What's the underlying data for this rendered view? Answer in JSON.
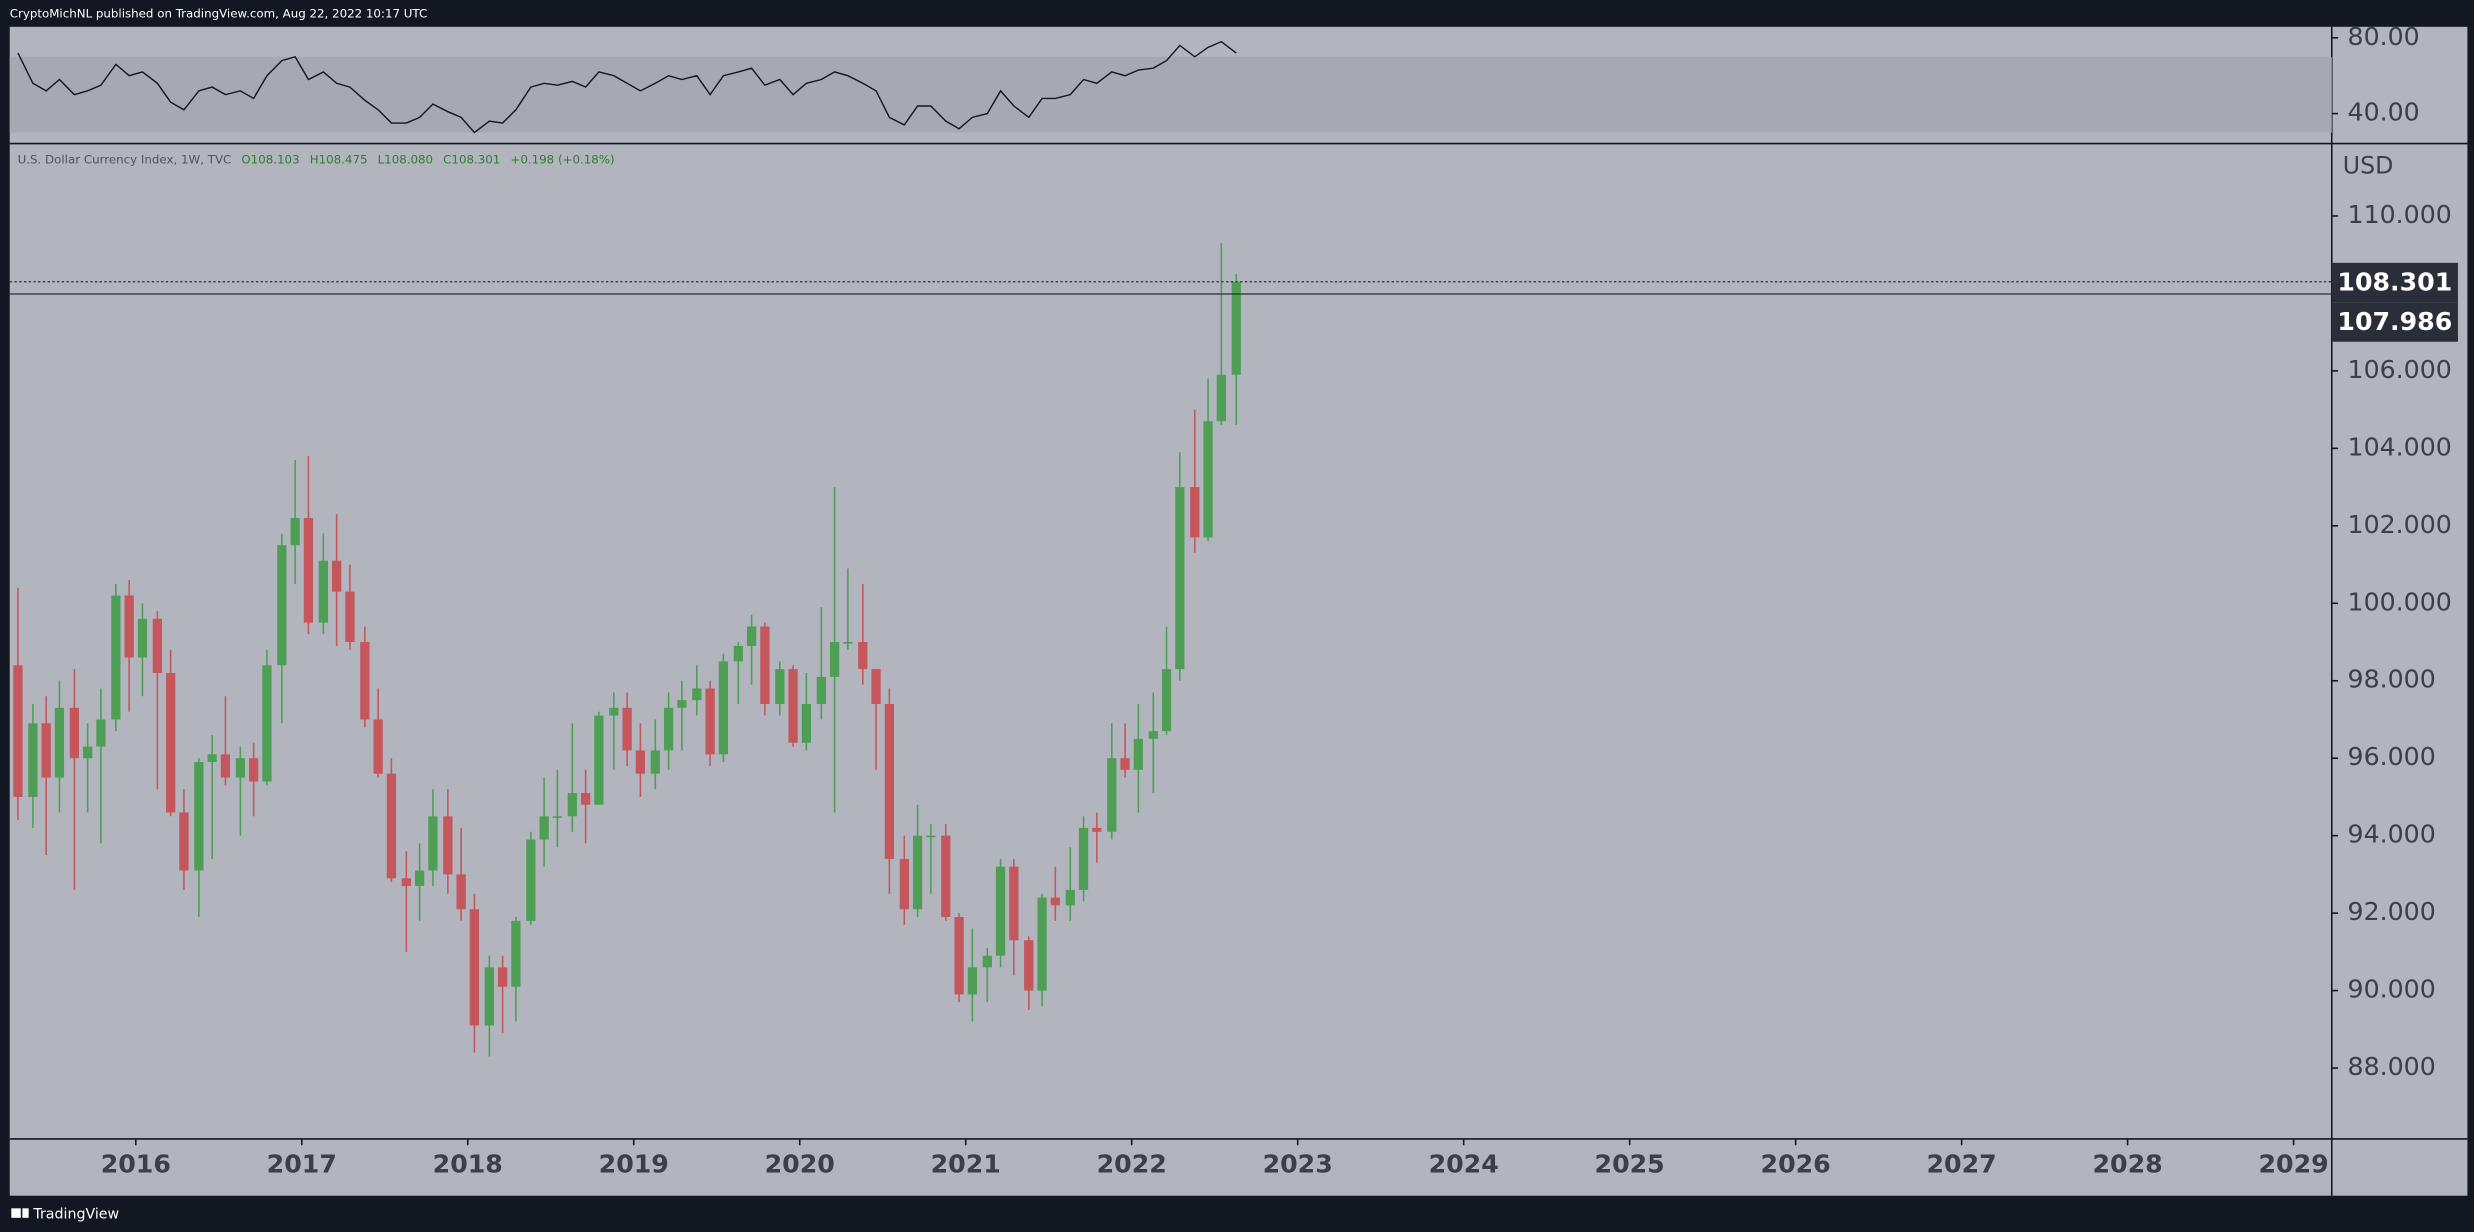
{
  "header": {
    "publisher": "CryptoMichNL published on TradingView.com, Aug 22, 2022 10:17 UTC",
    "footer": "TradingView"
  },
  "chart_data": [
    {
      "type": "line",
      "x": [
        2015.29,
        2015.38,
        2015.46,
        2015.54,
        2015.63,
        2015.71,
        2015.79,
        2015.88,
        2015.96,
        2016.04,
        2016.13,
        2016.21,
        2016.29,
        2016.38,
        2016.46,
        2016.54,
        2016.63,
        2016.71,
        2016.79,
        2016.88,
        2016.96,
        2017.04,
        2017.13,
        2017.21,
        2017.29,
        2017.38,
        2017.46,
        2017.54,
        2017.63,
        2017.71,
        2017.79,
        2017.88,
        2017.96,
        2018.04,
        2018.13,
        2018.21,
        2018.29,
        2018.38,
        2018.46,
        2018.54,
        2018.63,
        2018.71,
        2018.79,
        2018.88,
        2018.96,
        2019.04,
        2019.13,
        2019.21,
        2019.29,
        2019.38,
        2019.46,
        2019.54,
        2019.63,
        2019.71,
        2019.79,
        2019.88,
        2019.96,
        2020.04,
        2020.13,
        2020.21,
        2020.29,
        2020.38,
        2020.46,
        2020.54,
        2020.63,
        2020.71,
        2020.79,
        2020.88,
        2020.96,
        2021.04,
        2021.13,
        2021.21,
        2021.29,
        2021.38,
        2021.46,
        2021.54,
        2021.63,
        2021.71,
        2021.79,
        2021.88,
        2021.96,
        2022.04,
        2022.13,
        2022.21,
        2022.29,
        2022.38,
        2022.46,
        2022.54,
        2022.63
      ],
      "series": [
        {
          "color": "#131722",
          "values": [
            72,
            56,
            52,
            58,
            50,
            52,
            55,
            66,
            60,
            62,
            56,
            46,
            42,
            52,
            54,
            50,
            52,
            48,
            60,
            68,
            70,
            58,
            62,
            56,
            54,
            47,
            42,
            35,
            35,
            38,
            45,
            41,
            38,
            30,
            36,
            35,
            42,
            54,
            56,
            55,
            57,
            54,
            62,
            60,
            56,
            52,
            56,
            60,
            58,
            60,
            50,
            60,
            62,
            64,
            55,
            58,
            50,
            56,
            58,
            62,
            60,
            56,
            52,
            38,
            34,
            44,
            44,
            36,
            32,
            38,
            40,
            52,
            44,
            38,
            48,
            48,
            50,
            58,
            56,
            62,
            60,
            63,
            64,
            68,
            76,
            70,
            75,
            78,
            72
          ]
        }
      ],
      "band": [
        30,
        70
      ],
      "xlim": [
        2015.25,
        2029.23
      ],
      "ylim": [
        24.17,
        85.83
      ],
      "yticks": [
        {
          "value": 40,
          "label": "40.00"
        },
        {
          "value": 80,
          "label": "80.00"
        }
      ]
    },
    {
      "type": "candlestick",
      "title": "U.S. Dollar Currency Index, 1W, TVC",
      "status_line": [
        "O108.103",
        "H108.475",
        "L108.080",
        "C108.301",
        "+0.198 (+0.18%)"
      ],
      "unit": "USD",
      "up_color": "#4e9f55",
      "down_color": "#c4565c",
      "x": [
        2015.29,
        2015.38,
        2015.46,
        2015.54,
        2015.63,
        2015.71,
        2015.79,
        2015.88,
        2015.96,
        2016.04,
        2016.13,
        2016.21,
        2016.29,
        2016.38,
        2016.46,
        2016.54,
        2016.63,
        2016.71,
        2016.79,
        2016.88,
        2016.96,
        2017.04,
        2017.13,
        2017.21,
        2017.29,
        2017.38,
        2017.46,
        2017.54,
        2017.63,
        2017.71,
        2017.79,
        2017.88,
        2017.96,
        2018.04,
        2018.13,
        2018.21,
        2018.29,
        2018.38,
        2018.46,
        2018.54,
        2018.63,
        2018.71,
        2018.79,
        2018.88,
        2018.96,
        2019.04,
        2019.13,
        2019.21,
        2019.29,
        2019.38,
        2019.46,
        2019.54,
        2019.63,
        2019.71,
        2019.79,
        2019.88,
        2019.96,
        2020.04,
        2020.13,
        2020.21,
        2020.29,
        2020.38,
        2020.46,
        2020.54,
        2020.63,
        2020.71,
        2020.79,
        2020.88,
        2020.96,
        2021.04,
        2021.13,
        2021.21,
        2021.29,
        2021.38,
        2021.46,
        2021.54,
        2021.63,
        2021.71,
        2021.79,
        2021.88,
        2021.96,
        2022.04,
        2022.13,
        2022.21,
        2022.29,
        2022.38,
        2022.46,
        2022.54,
        2022.63
      ],
      "open": [
        98.4,
        95.0,
        96.9,
        95.5,
        97.3,
        96.0,
        96.3,
        97.0,
        100.2,
        98.6,
        99.6,
        98.2,
        94.6,
        93.1,
        95.9,
        96.1,
        95.5,
        96.0,
        95.4,
        98.4,
        101.5,
        102.2,
        99.5,
        101.1,
        100.3,
        99.0,
        97.0,
        95.6,
        92.9,
        92.7,
        93.1,
        94.5,
        93.0,
        92.1,
        89.1,
        90.6,
        90.1,
        91.8,
        93.9,
        94.5,
        94.5,
        95.1,
        94.8,
        97.1,
        97.3,
        96.2,
        95.6,
        96.2,
        97.3,
        97.5,
        97.8,
        96.1,
        98.5,
        98.9,
        99.4,
        97.4,
        98.3,
        96.4,
        97.4,
        98.1,
        99.0,
        99.0,
        98.3,
        97.4,
        93.4,
        92.1,
        94.0,
        94.0,
        91.9,
        89.9,
        90.6,
        90.9,
        93.2,
        91.3,
        90.0,
        92.4,
        92.2,
        92.6,
        94.2,
        94.1,
        96.0,
        95.7,
        96.5,
        96.7,
        98.3,
        103.0,
        101.7,
        104.7,
        105.9
      ],
      "high": [
        100.4,
        97.4,
        97.6,
        98.0,
        98.3,
        96.9,
        97.8,
        100.5,
        100.6,
        100.0,
        99.8,
        98.8,
        95.2,
        96.0,
        96.6,
        97.6,
        96.3,
        96.4,
        98.8,
        101.8,
        103.7,
        103.8,
        101.8,
        102.3,
        101.0,
        99.4,
        97.8,
        96.0,
        93.6,
        93.8,
        95.2,
        95.2,
        94.2,
        92.5,
        90.9,
        90.9,
        91.9,
        94.1,
        95.5,
        95.7,
        96.9,
        95.7,
        97.2,
        97.7,
        97.7,
        96.9,
        97.0,
        97.7,
        98.0,
        98.4,
        98.0,
        98.7,
        99.0,
        99.7,
        99.5,
        98.5,
        98.4,
        98.2,
        99.9,
        103.0,
        100.9,
        100.5,
        98.3,
        97.8,
        94.0,
        94.8,
        94.3,
        94.3,
        92.0,
        91.6,
        91.1,
        93.4,
        93.4,
        91.4,
        92.5,
        93.2,
        93.7,
        94.5,
        94.6,
        96.9,
        96.9,
        97.4,
        97.7,
        99.4,
        103.9,
        105.0,
        105.8,
        109.3,
        108.5
      ],
      "low": [
        94.4,
        94.2,
        93.5,
        94.6,
        92.6,
        94.6,
        93.8,
        96.7,
        97.2,
        97.6,
        95.2,
        94.5,
        92.6,
        91.9,
        93.4,
        95.3,
        94.0,
        94.5,
        95.3,
        96.9,
        100.5,
        99.2,
        99.2,
        98.9,
        98.8,
        96.8,
        95.5,
        92.8,
        91.0,
        91.8,
        92.7,
        92.5,
        91.8,
        88.4,
        88.3,
        88.9,
        89.2,
        91.7,
        93.2,
        93.7,
        94.1,
        93.8,
        94.8,
        95.7,
        95.8,
        95.0,
        95.2,
        95.7,
        96.2,
        97.1,
        95.8,
        95.9,
        97.4,
        97.9,
        97.1,
        97.1,
        96.3,
        96.2,
        97.0,
        94.6,
        98.8,
        97.9,
        95.7,
        92.5,
        91.7,
        91.9,
        92.5,
        91.8,
        89.7,
        89.2,
        89.7,
        90.6,
        90.4,
        89.5,
        89.6,
        91.8,
        91.8,
        92.3,
        93.3,
        93.9,
        95.5,
        94.6,
        95.1,
        96.6,
        98.0,
        101.3,
        101.6,
        104.6,
        104.6
      ],
      "close": [
        95.0,
        96.9,
        95.5,
        97.3,
        96.0,
        96.3,
        97.0,
        100.2,
        98.6,
        99.6,
        98.2,
        94.6,
        93.1,
        95.9,
        96.1,
        95.5,
        96.0,
        95.4,
        98.4,
        101.5,
        102.2,
        99.5,
        101.1,
        100.3,
        99.0,
        97.0,
        95.6,
        92.9,
        92.7,
        93.1,
        94.5,
        93.0,
        92.1,
        89.1,
        90.6,
        90.1,
        91.8,
        93.9,
        94.5,
        94.5,
        95.1,
        94.8,
        97.1,
        97.3,
        96.2,
        95.6,
        96.2,
        97.3,
        97.5,
        97.8,
        96.1,
        98.5,
        98.9,
        99.4,
        97.4,
        98.3,
        96.4,
        97.4,
        98.1,
        99.0,
        99.0,
        98.3,
        97.4,
        93.4,
        92.1,
        94.0,
        94.0,
        91.9,
        89.9,
        90.6,
        90.9,
        93.2,
        91.3,
        90.0,
        92.4,
        92.2,
        92.6,
        94.2,
        94.1,
        96.0,
        95.7,
        96.5,
        96.7,
        98.3,
        103.0,
        101.7,
        104.7,
        105.9,
        108.3
      ],
      "price_lines": [
        {
          "value": 108.301,
          "style": "dashed"
        },
        {
          "value": 107.986,
          "style": "solid"
        }
      ],
      "xlim": [
        2015.25,
        2029.23
      ],
      "xticks": [
        2016,
        2017,
        2018,
        2019,
        2020,
        2021,
        2022,
        2023,
        2024,
        2025,
        2026,
        2027,
        2028,
        2029
      ],
      "ylim": [
        86.17,
        111.87
      ],
      "yticks": [
        {
          "value": 88,
          "label": "88.000"
        },
        {
          "value": 90,
          "label": "90.000"
        },
        {
          "value": 92,
          "label": "92.000"
        },
        {
          "value": 94,
          "label": "94.000"
        },
        {
          "value": 96,
          "label": "96.000"
        },
        {
          "value": 98,
          "label": "98.000"
        },
        {
          "value": 100,
          "label": "100.000"
        },
        {
          "value": 102,
          "label": "102.000"
        },
        {
          "value": 104,
          "label": "104.000"
        },
        {
          "value": 106,
          "label": "106.000"
        },
        {
          "value": 110,
          "label": "110.000"
        }
      ]
    }
  ]
}
